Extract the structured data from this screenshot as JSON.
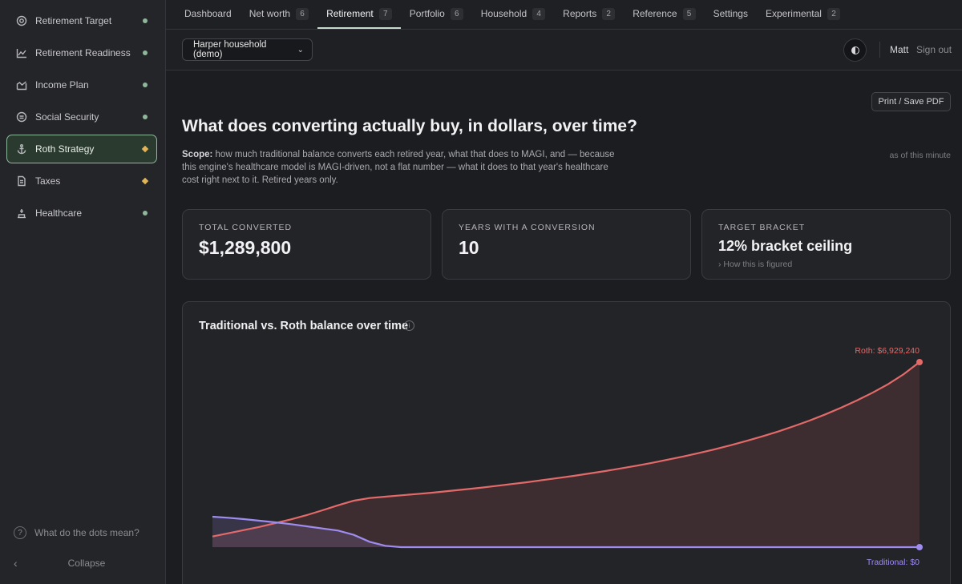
{
  "sidebar": {
    "items": [
      {
        "label": "Retirement Target",
        "icon": "target-icon",
        "marker": "dot"
      },
      {
        "label": "Retirement Readiness",
        "icon": "trend-chart-icon",
        "marker": "dot"
      },
      {
        "label": "Income Plan",
        "icon": "bar-chart-icon",
        "marker": "dot"
      },
      {
        "label": "Social Security",
        "icon": "shield-coin-icon",
        "marker": "dot"
      },
      {
        "label": "Roth Strategy",
        "icon": "anchor-icon",
        "marker": "diamond",
        "active": true
      },
      {
        "label": "Taxes",
        "icon": "document-icon",
        "marker": "diamond"
      },
      {
        "label": "Healthcare",
        "icon": "medical-icon",
        "marker": "dot"
      }
    ],
    "help_label": "What do the dots mean?",
    "collapse_label": "Collapse"
  },
  "tabs": [
    {
      "label": "Dashboard",
      "badge": ""
    },
    {
      "label": "Net worth",
      "badge": "6"
    },
    {
      "label": "Retirement",
      "badge": "7",
      "active": true
    },
    {
      "label": "Portfolio",
      "badge": "6"
    },
    {
      "label": "Household",
      "badge": "4"
    },
    {
      "label": "Reports",
      "badge": "2"
    },
    {
      "label": "Reference",
      "badge": "5"
    },
    {
      "label": "Settings",
      "badge": ""
    },
    {
      "label": "Experimental",
      "badge": "2"
    }
  ],
  "header": {
    "household": "Harper household (demo)",
    "user": "Matt",
    "sign_out": "Sign out"
  },
  "main": {
    "print_label": "Print / Save PDF",
    "title": "What does converting actually buy, in dollars, over time?",
    "scope_label": "Scope:",
    "scope_text": " how much traditional balance converts each retired year, what that does to MAGI, and — because this engine's healthcare model is MAGI-driven, not a flat number — what it does to that year's healthcare cost right next to it. Retired years only.",
    "as_of": "as of this minute",
    "cards": [
      {
        "label": "TOTAL CONVERTED",
        "value": "$1,289,800"
      },
      {
        "label": "YEARS WITH A CONVERSION",
        "value": "10"
      },
      {
        "label": "TARGET BRACKET",
        "value": "12% bracket ceiling",
        "link": "› How this is figured"
      }
    ]
  },
  "chart_data": {
    "type": "line",
    "title": "Traditional vs. Roth balance over time",
    "colors": {
      "roth": "#e46a6a",
      "traditional": "#9f8cf0"
    },
    "x_index": [
      0,
      1,
      2,
      3,
      4,
      5,
      6,
      7,
      8,
      9,
      10,
      11,
      12,
      13,
      14,
      15,
      16,
      17,
      18,
      19,
      20,
      21,
      22,
      23,
      24,
      25,
      26,
      27,
      28,
      29,
      30,
      31,
      32,
      33,
      34,
      35,
      36,
      37,
      38,
      39,
      40,
      41,
      42,
      43,
      44,
      45
    ],
    "series": [
      {
        "name": "Roth",
        "end_label": "Roth: $6,929,240",
        "values": [
          400000,
          520000,
          640000,
          760000,
          900000,
          1040000,
          1200000,
          1380000,
          1570000,
          1740000,
          1840000,
          1890000,
          1940000,
          1990000,
          2040000,
          2100000,
          2160000,
          2220000,
          2290000,
          2360000,
          2430000,
          2510000,
          2590000,
          2670000,
          2760000,
          2850000,
          2950000,
          3050000,
          3160000,
          3280000,
          3400000,
          3530000,
          3670000,
          3820000,
          3980000,
          4150000,
          4330000,
          4530000,
          4740000,
          4970000,
          5220000,
          5490000,
          5780000,
          6100000,
          6480000,
          6929240
        ]
      },
      {
        "name": "Traditional",
        "end_label": "Traditional: $0",
        "values": [
          1140000,
          1100000,
          1050000,
          990000,
          930000,
          860000,
          780000,
          700000,
          620000,
          460000,
          200000,
          50000,
          0,
          0,
          0,
          0,
          0,
          0,
          0,
          0,
          0,
          0,
          0,
          0,
          0,
          0,
          0,
          0,
          0,
          0,
          0,
          0,
          0,
          0,
          0,
          0,
          0,
          0,
          0,
          0,
          0,
          0,
          0,
          0,
          0,
          0
        ]
      }
    ],
    "ylim": [
      0,
      6929240
    ],
    "grid": false,
    "legend": "end-labels"
  }
}
